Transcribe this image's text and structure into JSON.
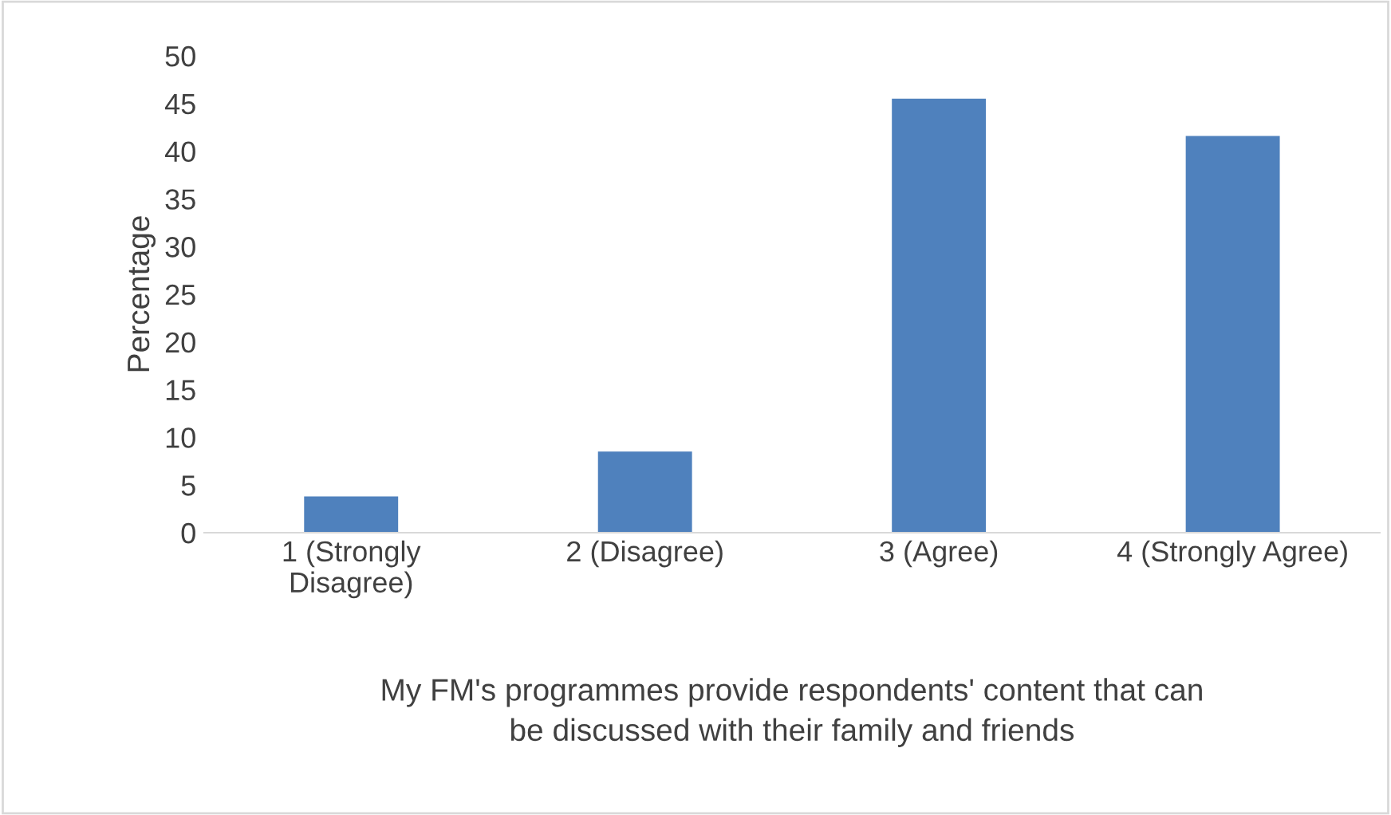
{
  "chart_data": {
    "type": "bar",
    "xlabel": "My FM's programmes provide respondents' content that can\nbe discussed with their family and friends",
    "ylabel": "Percentage",
    "categories": [
      "1 (Strongly\nDisagree)",
      "2 (Disagree)",
      "3 (Agree)",
      "4 (Strongly Agree)"
    ],
    "values": [
      3.8,
      8.5,
      45.5,
      41.6
    ],
    "color": "#4f81bd",
    "ylim": [
      0,
      50
    ],
    "yticks": [
      0,
      5,
      10,
      15,
      20,
      25,
      30,
      35,
      40,
      45,
      50
    ],
    "grid": false
  }
}
